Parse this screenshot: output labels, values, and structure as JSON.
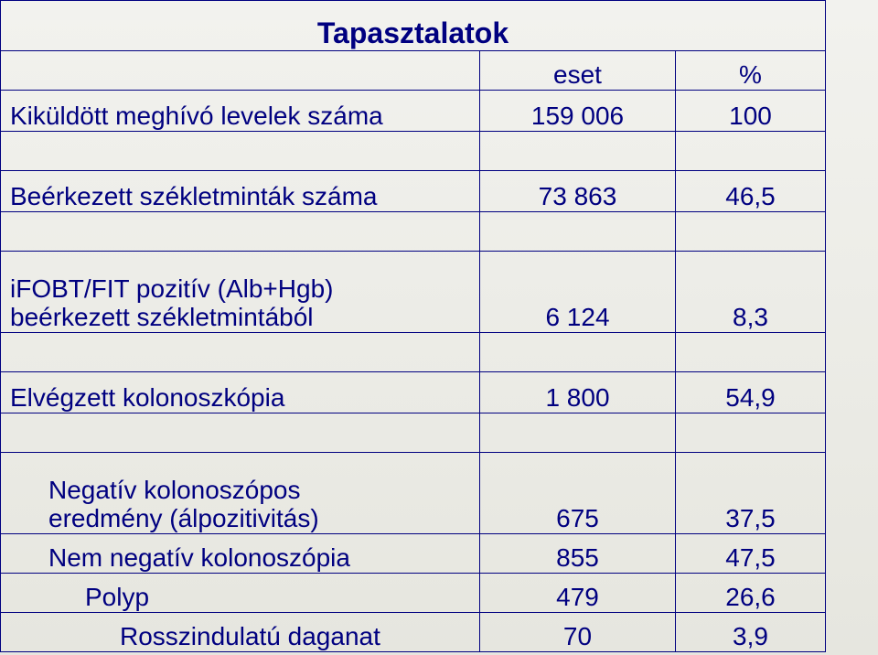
{
  "title": "Tapasztalatok",
  "columns": {
    "c2": "eset",
    "c3": "%"
  },
  "rows": {
    "invites": {
      "label": "Kiküldött meghívó levelek száma",
      "eset": "159 006",
      "pct": "100"
    },
    "received_samples": {
      "label": "Beérkezett székletminták száma",
      "eset": "73 863",
      "pct": "46,5"
    },
    "ifobt": {
      "line1": "iFOBT/FIT pozitív (Alb+Hgb)",
      "line2": "beérkezett székletmintából",
      "eset": "6 124",
      "pct": "8,3"
    },
    "colonoscopy_done": {
      "label": "Elvégzett kolonoszkópia",
      "eset": "1 800",
      "pct": "54,9"
    },
    "neg_colonoscope": {
      "line1": "Negatív kolonoszópos",
      "line2": "eredmény (álpozitivitás)",
      "eset": "675",
      "pct": "37,5"
    },
    "non_neg": {
      "label": "Nem negatív kolonoszópia",
      "eset": "855",
      "pct": "47,5"
    },
    "polyp": {
      "label": "Polyp",
      "eset": "479",
      "pct": "26,6"
    },
    "malignant": {
      "label": "Rosszindulatú daganat",
      "eset": "70",
      "pct": "3,9"
    }
  }
}
